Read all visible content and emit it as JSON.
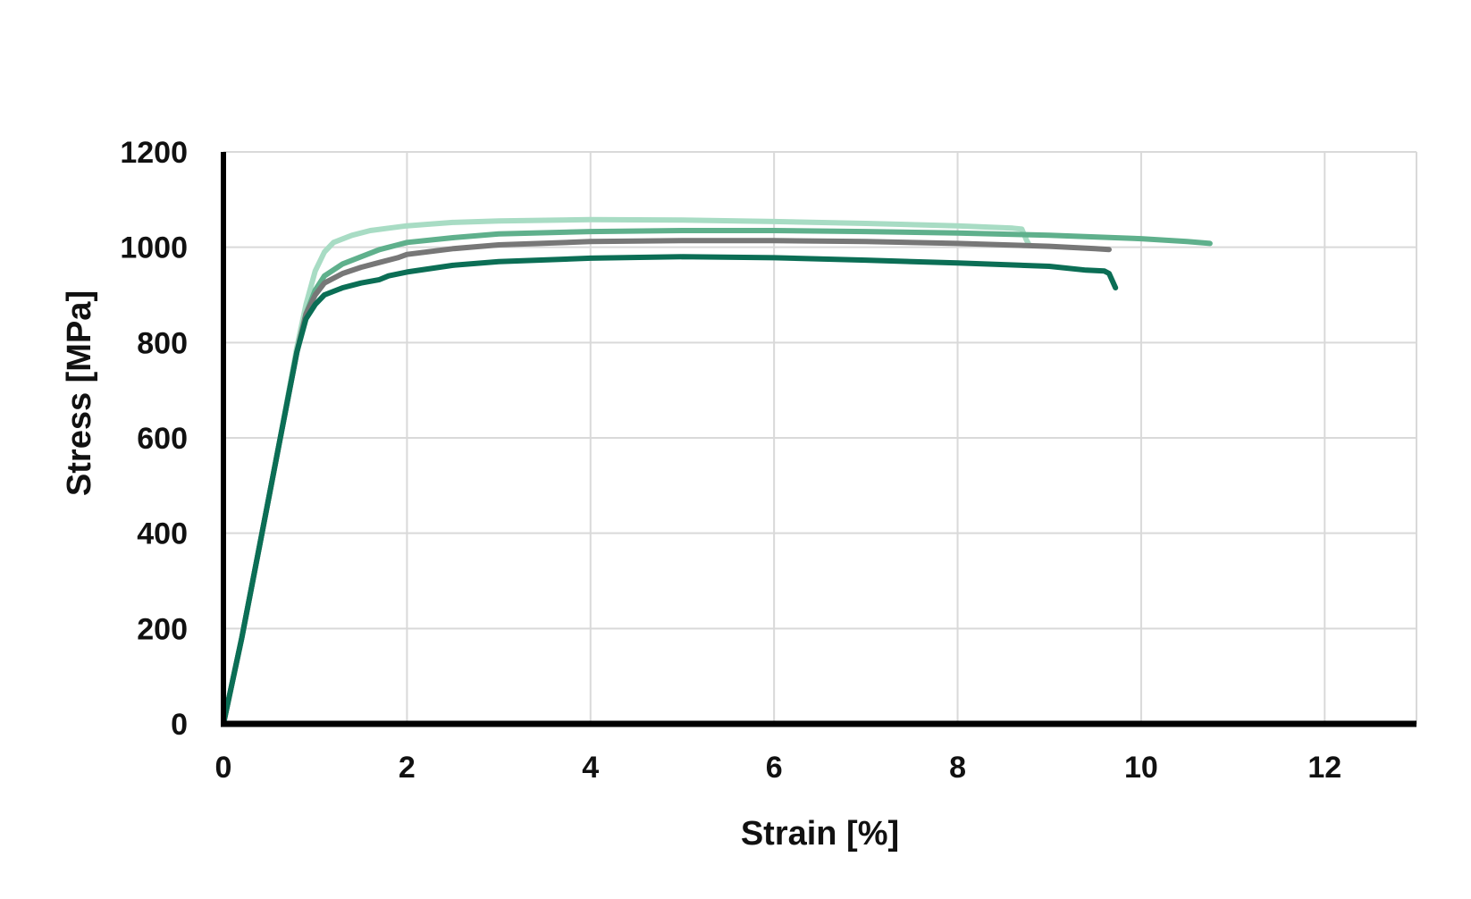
{
  "chart_data": {
    "type": "line",
    "title": "",
    "xlabel": "Strain [%]",
    "ylabel": "Stress [MPa]",
    "xlim": [
      0,
      13
    ],
    "ylim": [
      0,
      1200
    ],
    "xticks": [
      0,
      2,
      4,
      6,
      8,
      10,
      12
    ],
    "yticks": [
      0,
      200,
      400,
      600,
      800,
      1000,
      1200
    ],
    "grid": true,
    "legend": "none",
    "series": [
      {
        "color": "#a8dcc4",
        "points": [
          [
            0,
            0
          ],
          [
            0.2,
            180
          ],
          [
            0.4,
            380
          ],
          [
            0.6,
            580
          ],
          [
            0.8,
            790
          ],
          [
            0.9,
            880
          ],
          [
            1.0,
            950
          ],
          [
            1.1,
            990
          ],
          [
            1.2,
            1010
          ],
          [
            1.4,
            1025
          ],
          [
            1.6,
            1035
          ],
          [
            1.8,
            1040
          ],
          [
            2.0,
            1045
          ],
          [
            2.5,
            1052
          ],
          [
            3.0,
            1055
          ],
          [
            4.0,
            1058
          ],
          [
            5.0,
            1057
          ],
          [
            6.0,
            1054
          ],
          [
            7.0,
            1050
          ],
          [
            8.0,
            1045
          ],
          [
            8.6,
            1040
          ],
          [
            8.7,
            1038
          ],
          [
            8.75,
            1015
          ],
          [
            8.78,
            1005
          ]
        ]
      },
      {
        "color": "#5fb08c",
        "points": [
          [
            0,
            0
          ],
          [
            0.2,
            180
          ],
          [
            0.4,
            380
          ],
          [
            0.6,
            580
          ],
          [
            0.8,
            780
          ],
          [
            0.9,
            860
          ],
          [
            1.0,
            910
          ],
          [
            1.1,
            940
          ],
          [
            1.3,
            965
          ],
          [
            1.5,
            980
          ],
          [
            1.7,
            995
          ],
          [
            1.9,
            1005
          ],
          [
            2.0,
            1010
          ],
          [
            2.5,
            1020
          ],
          [
            3.0,
            1028
          ],
          [
            4.0,
            1033
          ],
          [
            5.0,
            1035
          ],
          [
            6.0,
            1035
          ],
          [
            7.0,
            1033
          ],
          [
            8.0,
            1030
          ],
          [
            9.0,
            1025
          ],
          [
            10.0,
            1018
          ],
          [
            10.5,
            1012
          ],
          [
            10.75,
            1008
          ]
        ]
      },
      {
        "color": "#777777",
        "points": [
          [
            0,
            0
          ],
          [
            0.2,
            180
          ],
          [
            0.4,
            380
          ],
          [
            0.6,
            580
          ],
          [
            0.8,
            780
          ],
          [
            0.9,
            860
          ],
          [
            1.0,
            900
          ],
          [
            1.1,
            925
          ],
          [
            1.3,
            945
          ],
          [
            1.5,
            958
          ],
          [
            1.7,
            968
          ],
          [
            1.9,
            978
          ],
          [
            2.0,
            985
          ],
          [
            2.5,
            997
          ],
          [
            3.0,
            1005
          ],
          [
            4.0,
            1012
          ],
          [
            5.0,
            1014
          ],
          [
            6.0,
            1014
          ],
          [
            7.0,
            1012
          ],
          [
            8.0,
            1008
          ],
          [
            9.0,
            1002
          ],
          [
            9.5,
            997
          ],
          [
            9.65,
            995
          ]
        ]
      },
      {
        "color": "#0b6e55",
        "points": [
          [
            0,
            0
          ],
          [
            0.2,
            180
          ],
          [
            0.4,
            380
          ],
          [
            0.6,
            580
          ],
          [
            0.8,
            780
          ],
          [
            0.9,
            850
          ],
          [
            1.0,
            880
          ],
          [
            1.1,
            900
          ],
          [
            1.3,
            915
          ],
          [
            1.5,
            925
          ],
          [
            1.7,
            932
          ],
          [
            1.8,
            940
          ],
          [
            2.0,
            948
          ],
          [
            2.5,
            962
          ],
          [
            3.0,
            970
          ],
          [
            4.0,
            977
          ],
          [
            5.0,
            980
          ],
          [
            6.0,
            978
          ],
          [
            7.0,
            973
          ],
          [
            8.0,
            967
          ],
          [
            9.0,
            960
          ],
          [
            9.4,
            952
          ],
          [
            9.6,
            950
          ],
          [
            9.65,
            945
          ],
          [
            9.72,
            915
          ]
        ]
      }
    ]
  }
}
